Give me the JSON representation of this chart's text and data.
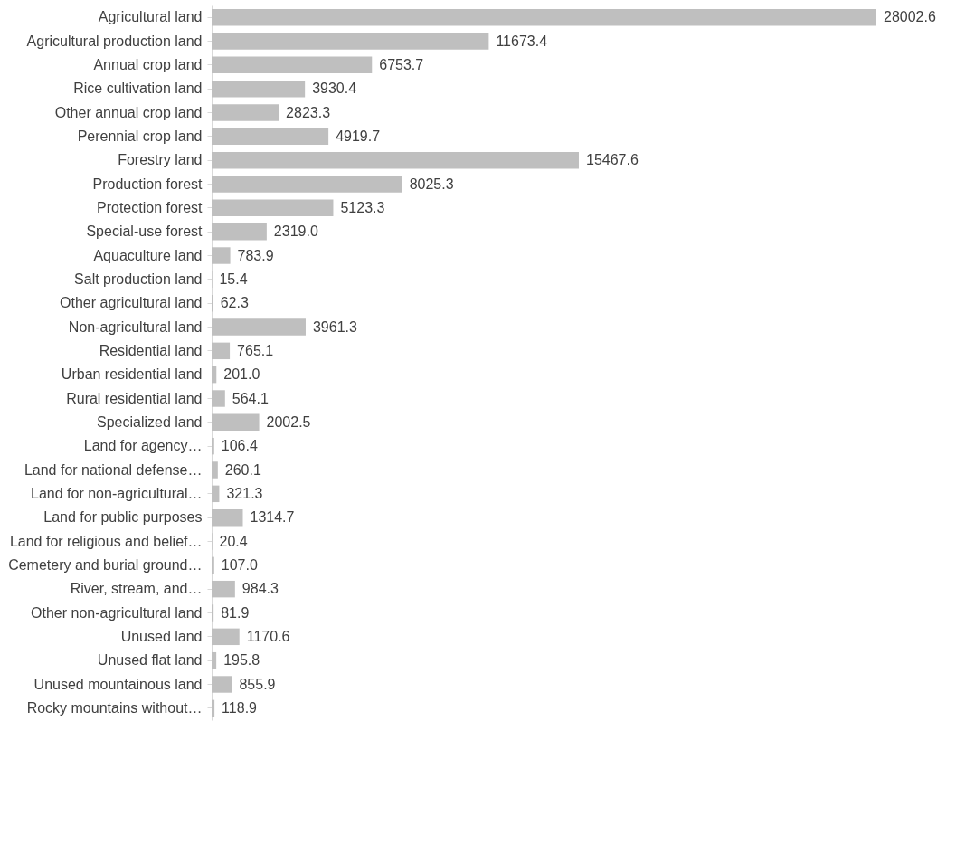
{
  "chart_data": {
    "type": "bar",
    "orientation": "horizontal",
    "grid": false,
    "tick_labels": "y",
    "value_labels": [
      "28002.6",
      "11673.4",
      "6753.7",
      "3930.4",
      "2823.3",
      "4919.7",
      "15467.6",
      "8025.3",
      "5123.3",
      "2319.0",
      "783.9",
      "15.4",
      "62.3",
      "3961.3",
      "765.1",
      "201.0",
      "564.1",
      "2002.5",
      "106.4",
      "260.1",
      "321.3",
      "1314.7",
      "20.4",
      "107.0",
      "984.3",
      "81.9",
      "1170.6",
      "195.8",
      "855.9",
      "118.9"
    ],
    "categories": [
      "Agricultural land",
      "Agricultural production land",
      "Annual crop land",
      "Rice cultivation land",
      "Other annual crop land",
      "Perennial crop land",
      "Forestry land",
      "Production forest",
      "Protection forest",
      "Special-use forest",
      "Aquaculture land",
      "Salt production land",
      "Other agricultural land",
      "Non-agricultural land",
      "Residential land",
      "Urban residential land",
      "Rural residential land",
      "Specialized land",
      "Land for agency…",
      "Land for national defense…",
      "Land for non-agricultural…",
      "Land for public purposes",
      "Land for religious and belief…",
      "Cemetery and burial ground…",
      "River, stream, and…",
      "Other non-agricultural land",
      "Unused land",
      "Unused flat land",
      "Unused mountainous land",
      "Rocky mountains without…"
    ],
    "values": [
      28002.6,
      11673.4,
      6753.7,
      3930.4,
      2823.3,
      4919.7,
      15467.6,
      8025.3,
      5123.3,
      2319.0,
      783.9,
      15.4,
      62.3,
      3961.3,
      765.1,
      201.0,
      564.1,
      2002.5,
      106.4,
      260.1,
      321.3,
      1314.7,
      20.4,
      107.0,
      984.3,
      81.9,
      1170.6,
      195.8,
      855.9,
      118.9
    ],
    "color": "#bfbfbf"
  }
}
